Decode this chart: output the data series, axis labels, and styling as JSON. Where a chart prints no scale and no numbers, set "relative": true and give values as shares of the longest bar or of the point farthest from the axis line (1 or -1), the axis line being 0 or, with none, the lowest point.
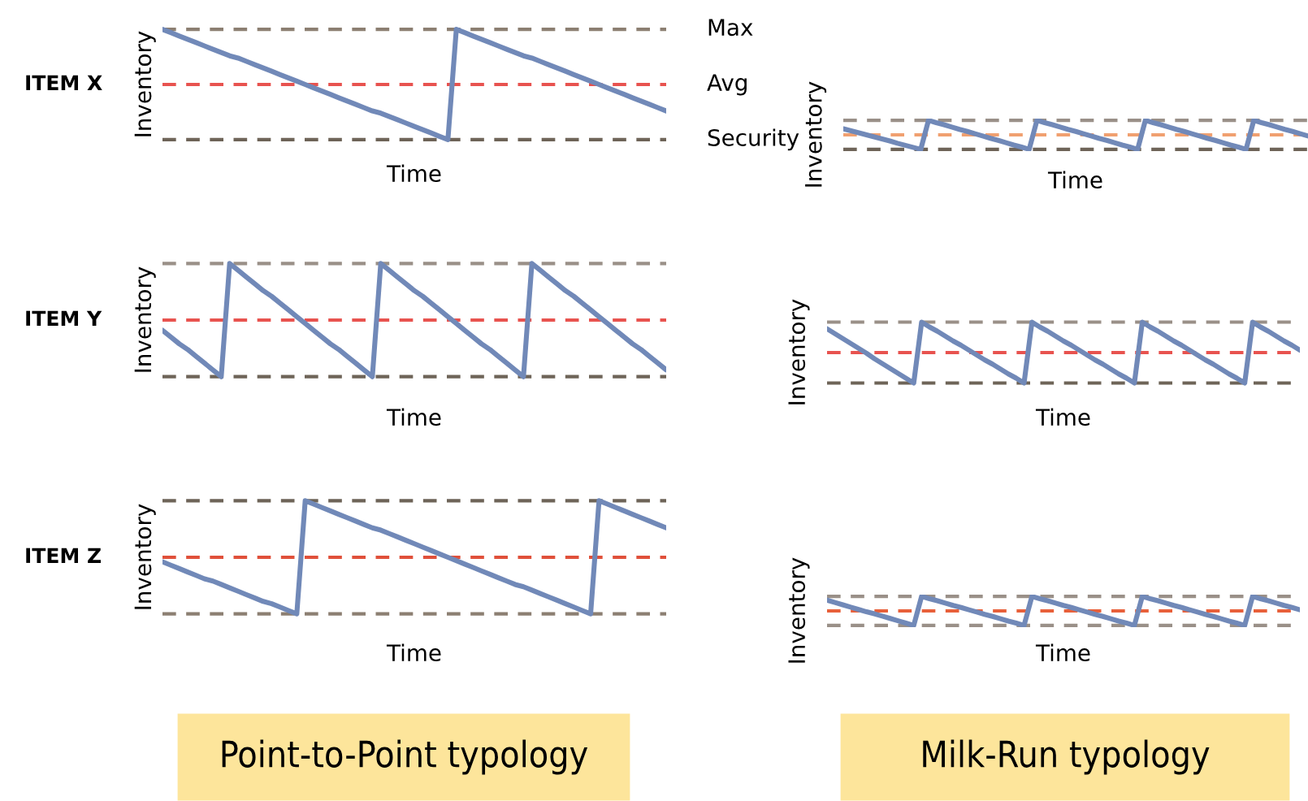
{
  "chart_data": [
    {
      "type": "line",
      "relative": true,
      "title": "ITEM X",
      "xlabel": "Time",
      "ylabel": "Inventory",
      "categories": [
        null,
        null,
        null,
        null,
        null,
        null,
        null,
        null,
        null,
        null,
        null,
        null,
        null,
        null,
        null,
        null,
        null,
        null,
        null,
        null,
        null,
        null,
        null,
        null,
        null,
        null,
        null,
        null,
        null,
        null,
        null,
        null,
        null,
        null,
        null,
        null,
        null,
        null,
        null,
        null,
        null,
        null,
        null,
        null,
        null,
        null,
        null,
        null,
        null,
        null,
        null,
        null,
        null,
        null,
        null,
        null,
        null,
        null,
        null,
        null,
        null
      ],
      "series": [
        {
          "color": "#7189b8",
          "values": [
            1,
            0.97,
            0.94,
            0.91,
            0.88,
            0.85,
            0.82,
            0.79,
            0.76,
            0.74,
            0.71,
            0.68,
            0.65,
            0.62,
            0.59,
            0.56,
            0.53,
            0.5,
            0.47,
            0.44,
            0.41,
            0.38,
            0.35,
            0.32,
            0.29,
            0.26,
            0.24,
            0.21,
            0.18,
            0.15,
            0.12,
            0.09,
            0.06,
            0.03,
            0,
            1,
            0.97,
            0.94,
            0.91,
            0.88,
            0.85,
            0.82,
            0.79,
            0.76,
            0.74,
            0.71,
            0.68,
            0.65,
            0.62,
            0.59,
            0.56,
            0.53,
            0.5,
            0.47,
            0.44,
            0.41,
            0.38,
            0.35,
            0.32,
            0.29,
            0.26
          ]
        }
      ],
      "ref_lines": [
        {
          "axis": "y",
          "value": 1,
          "label": "Max",
          "color": "#8c7f72",
          "line_style": "dashed"
        },
        {
          "axis": "y",
          "value": 0.5,
          "label": "Avg",
          "color": "#e8534f",
          "line_style": "dashed"
        },
        {
          "axis": "y",
          "value": 0,
          "label": "Security",
          "color": "#6e6458",
          "line_style": "dashed"
        }
      ]
    },
    {
      "type": "line",
      "relative": true,
      "xlabel": "Time",
      "ylabel": "Inventory",
      "categories": [
        null,
        null,
        null,
        null,
        null,
        null,
        null,
        null,
        null,
        null,
        null,
        null,
        null,
        null,
        null,
        null,
        null,
        null,
        null,
        null,
        null,
        null,
        null,
        null,
        null,
        null,
        null,
        null,
        null,
        null,
        null,
        null,
        null,
        null,
        null,
        null,
        null,
        null,
        null,
        null,
        null,
        null,
        null,
        null,
        null,
        null,
        null,
        null,
        null,
        null,
        null,
        null,
        null,
        null,
        null,
        null,
        null,
        null,
        null,
        null,
        null
      ],
      "series": [
        {
          "color": "#7189b8",
          "values": [
            0.71,
            0.64,
            0.57,
            0.5,
            0.43,
            0.36,
            0.29,
            0.21,
            0.14,
            0.07,
            0,
            1,
            0.92,
            0.85,
            0.77,
            0.69,
            0.62,
            0.54,
            0.46,
            0.38,
            0.31,
            0.23,
            0.15,
            0.08,
            0,
            1,
            0.92,
            0.85,
            0.77,
            0.69,
            0.62,
            0.54,
            0.46,
            0.38,
            0.31,
            0.23,
            0.15,
            0.08,
            0,
            1,
            0.92,
            0.85,
            0.77,
            0.69,
            0.62,
            0.54,
            0.46,
            0.38,
            0.31,
            0.23,
            0.15,
            0.08,
            0,
            1,
            0.92,
            0.85,
            0.77,
            0.69,
            0.62,
            0.54,
            0.46
          ]
        }
      ],
      "ref_lines": [
        {
          "axis": "y",
          "value": 1,
          "color": "#9a9088",
          "line_style": "dashed"
        },
        {
          "axis": "y",
          "value": 0.5,
          "color": "#f0a070",
          "line_style": "dashed"
        },
        {
          "axis": "y",
          "value": 0,
          "color": "#6e6458",
          "line_style": "dashed"
        }
      ]
    },
    {
      "type": "line",
      "relative": true,
      "title": "ITEM Y",
      "xlabel": "Time",
      "ylabel": "Inventory",
      "categories": [
        null,
        null,
        null,
        null,
        null,
        null,
        null,
        null,
        null,
        null,
        null,
        null,
        null,
        null,
        null,
        null,
        null,
        null,
        null,
        null,
        null,
        null,
        null,
        null,
        null,
        null,
        null,
        null,
        null,
        null,
        null,
        null,
        null,
        null,
        null,
        null,
        null,
        null,
        null,
        null,
        null,
        null,
        null,
        null,
        null,
        null,
        null,
        null,
        null,
        null,
        null,
        null,
        null,
        null,
        null,
        null,
        null,
        null,
        null,
        null,
        null
      ],
      "series": [
        {
          "color": "#7189b8",
          "values": [
            0.41,
            0.35,
            0.29,
            0.24,
            0.18,
            0.12,
            0.06,
            0,
            1,
            0.94,
            0.88,
            0.82,
            0.76,
            0.71,
            0.65,
            0.59,
            0.53,
            0.47,
            0.41,
            0.35,
            0.29,
            0.24,
            0.18,
            0.12,
            0.06,
            0,
            1,
            0.94,
            0.88,
            0.82,
            0.76,
            0.71,
            0.65,
            0.59,
            0.53,
            0.47,
            0.41,
            0.35,
            0.29,
            0.24,
            0.18,
            0.12,
            0.06,
            0,
            1,
            0.94,
            0.88,
            0.82,
            0.76,
            0.71,
            0.65,
            0.59,
            0.53,
            0.47,
            0.41,
            0.35,
            0.29,
            0.24,
            0.18,
            0.12,
            0.06
          ]
        }
      ],
      "ref_lines": [
        {
          "axis": "y",
          "value": 1,
          "color": "#9a9088",
          "line_style": "dashed"
        },
        {
          "axis": "y",
          "value": 0.5,
          "color": "#e8534f",
          "line_style": "dashed"
        },
        {
          "axis": "y",
          "value": 0,
          "color": "#6e6458",
          "line_style": "dashed"
        }
      ]
    },
    {
      "type": "line",
      "relative": true,
      "xlabel": "Time",
      "ylabel": "Inventory",
      "categories": [
        null,
        null,
        null,
        null,
        null,
        null,
        null,
        null,
        null,
        null,
        null,
        null,
        null,
        null,
        null,
        null,
        null,
        null,
        null,
        null,
        null,
        null,
        null,
        null,
        null,
        null,
        null,
        null,
        null,
        null,
        null,
        null,
        null,
        null,
        null,
        null,
        null,
        null,
        null,
        null,
        null,
        null,
        null,
        null,
        null,
        null,
        null,
        null,
        null,
        null,
        null,
        null,
        null,
        null,
        null,
        null,
        null,
        null,
        null,
        null,
        null
      ],
      "series": [
        {
          "color": "#7189b8",
          "values": [
            0.89,
            0.81,
            0.73,
            0.65,
            0.57,
            0.49,
            0.4,
            0.32,
            0.24,
            0.16,
            0.08,
            0,
            1,
            0.92,
            0.85,
            0.77,
            0.69,
            0.62,
            0.54,
            0.46,
            0.38,
            0.31,
            0.23,
            0.15,
            0.08,
            0,
            1,
            0.92,
            0.85,
            0.77,
            0.69,
            0.62,
            0.54,
            0.46,
            0.38,
            0.31,
            0.23,
            0.15,
            0.08,
            0,
            1,
            0.92,
            0.85,
            0.77,
            0.69,
            0.62,
            0.54,
            0.46,
            0.38,
            0.31,
            0.23,
            0.15,
            0.08,
            0,
            1,
            0.92,
            0.85,
            0.77,
            0.69,
            0.62,
            0.54
          ]
        }
      ],
      "ref_lines": [
        {
          "axis": "y",
          "value": 1,
          "color": "#9a9088",
          "line_style": "dashed"
        },
        {
          "axis": "y",
          "value": 0.5,
          "color": "#e8534f",
          "line_style": "dashed"
        },
        {
          "axis": "y",
          "value": 0,
          "color": "#6e6458",
          "line_style": "dashed"
        }
      ]
    },
    {
      "type": "line",
      "relative": true,
      "title": "ITEM Z",
      "xlabel": "Time",
      "ylabel": "Inventory",
      "categories": [
        null,
        null,
        null,
        null,
        null,
        null,
        null,
        null,
        null,
        null,
        null,
        null,
        null,
        null,
        null,
        null,
        null,
        null,
        null,
        null,
        null,
        null,
        null,
        null,
        null,
        null,
        null,
        null,
        null,
        null,
        null,
        null,
        null,
        null,
        null,
        null,
        null,
        null,
        null,
        null,
        null,
        null,
        null,
        null,
        null,
        null,
        null,
        null,
        null,
        null,
        null,
        null,
        null,
        null,
        null,
        null,
        null,
        null,
        null,
        null,
        null
      ],
      "series": [
        {
          "color": "#7189b8",
          "values": [
            0.46,
            0.43,
            0.4,
            0.37,
            0.34,
            0.31,
            0.29,
            0.26,
            0.23,
            0.2,
            0.17,
            0.14,
            0.11,
            0.09,
            0.06,
            0.03,
            0,
            1,
            0.97,
            0.94,
            0.91,
            0.88,
            0.85,
            0.82,
            0.79,
            0.76,
            0.74,
            0.71,
            0.68,
            0.65,
            0.62,
            0.59,
            0.56,
            0.53,
            0.5,
            0.47,
            0.44,
            0.41,
            0.38,
            0.35,
            0.32,
            0.29,
            0.26,
            0.24,
            0.21,
            0.18,
            0.15,
            0.12,
            0.09,
            0.06,
            0.03,
            0,
            1,
            0.97,
            0.94,
            0.91,
            0.88,
            0.85,
            0.82,
            0.79,
            0.76
          ]
        }
      ],
      "ref_lines": [
        {
          "axis": "y",
          "value": 1,
          "color": "#6e6458",
          "line_style": "dashed"
        },
        {
          "axis": "y",
          "value": 0.5,
          "color": "#e0503a",
          "line_style": "dashed"
        },
        {
          "axis": "y",
          "value": 0,
          "color": "#8c7f72",
          "line_style": "dashed"
        }
      ],
      "annotations": [
        "Point-to-Point typology"
      ]
    },
    {
      "type": "line",
      "relative": true,
      "xlabel": "Time",
      "ylabel": "Inventory",
      "categories": [
        null,
        null,
        null,
        null,
        null,
        null,
        null,
        null,
        null,
        null,
        null,
        null,
        null,
        null,
        null,
        null,
        null,
        null,
        null,
        null,
        null,
        null,
        null,
        null,
        null,
        null,
        null,
        null,
        null,
        null,
        null,
        null,
        null,
        null,
        null,
        null,
        null,
        null,
        null,
        null,
        null,
        null,
        null,
        null,
        null,
        null,
        null,
        null,
        null,
        null,
        null,
        null,
        null,
        null,
        null,
        null,
        null,
        null,
        null,
        null,
        null
      ],
      "series": [
        {
          "color": "#7189b8",
          "values": [
            0.87,
            0.79,
            0.71,
            0.63,
            0.55,
            0.47,
            0.4,
            0.32,
            0.24,
            0.16,
            0.08,
            0,
            1,
            0.92,
            0.85,
            0.77,
            0.69,
            0.62,
            0.54,
            0.46,
            0.38,
            0.31,
            0.23,
            0.15,
            0.08,
            0,
            1,
            0.92,
            0.85,
            0.77,
            0.69,
            0.62,
            0.54,
            0.46,
            0.38,
            0.31,
            0.23,
            0.15,
            0.08,
            0,
            1,
            0.92,
            0.85,
            0.77,
            0.69,
            0.62,
            0.54,
            0.46,
            0.38,
            0.31,
            0.23,
            0.15,
            0.08,
            0,
            1,
            0.92,
            0.85,
            0.77,
            0.69,
            0.62,
            0.54
          ]
        }
      ],
      "ref_lines": [
        {
          "axis": "y",
          "value": 1,
          "color": "#9a9088",
          "line_style": "dashed"
        },
        {
          "axis": "y",
          "value": 0.5,
          "color": "#e8603a",
          "line_style": "dashed"
        },
        {
          "axis": "y",
          "value": 0,
          "color": "#9a9088",
          "line_style": "dashed"
        }
      ],
      "annotations": [
        "Milk-Run typology"
      ]
    }
  ]
}
